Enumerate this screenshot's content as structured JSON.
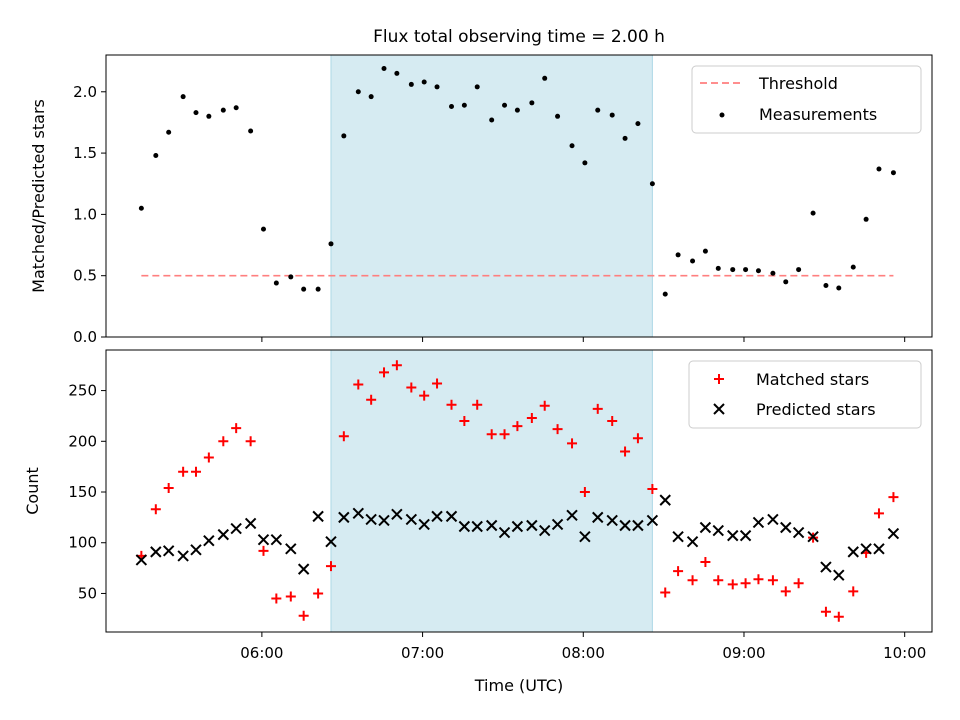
{
  "figure": {
    "title": "Flux total observing time = 2.00 h",
    "highlight_color": "#add8e6",
    "xaxis": {
      "label": "Time (UTC)",
      "tick_labels": [
        "06:00",
        "07:00",
        "08:00",
        "09:00",
        "10:00"
      ],
      "tick_hours": [
        6,
        7,
        8,
        9,
        10
      ],
      "range_hours": [
        5.03,
        10.17
      ]
    }
  },
  "chart_data": [
    {
      "type": "scatter",
      "ylabel": "Matched/Predicted stars",
      "ylim": [
        0,
        2.3
      ],
      "yticks": [
        0.0,
        0.5,
        1.0,
        1.5,
        2.0
      ],
      "ytick_labels": [
        "0.0",
        "0.5",
        "1.0",
        "1.5",
        "2.0"
      ],
      "highlight_span_hours": [
        6.43,
        8.43
      ],
      "legend_position": "top-right",
      "threshold": {
        "name": "Threshold",
        "value": 0.5,
        "x_range_hours": [
          5.25,
          9.93
        ],
        "color": "#ff7f7f",
        "style": "dashed"
      },
      "series": [
        {
          "name": "Measurements",
          "marker": "dot",
          "color": "#000000",
          "x_hours": [
            5.25,
            5.34,
            5.42,
            5.51,
            5.59,
            5.67,
            5.76,
            5.84,
            5.93,
            6.01,
            6.09,
            6.18,
            6.26,
            6.35,
            6.43,
            6.51,
            6.6,
            6.68,
            6.76,
            6.84,
            6.93,
            7.01,
            7.09,
            7.18,
            7.26,
            7.34,
            7.43,
            7.51,
            7.59,
            7.68,
            7.76,
            7.84,
            7.93,
            8.01,
            8.09,
            8.18,
            8.26,
            8.34,
            8.43,
            8.51,
            8.59,
            8.68,
            8.76,
            8.84,
            8.93,
            9.01,
            9.09,
            9.18,
            9.26,
            9.34,
            9.43,
            9.51,
            9.59,
            9.68,
            9.76,
            9.84,
            9.93
          ],
          "values": [
            1.05,
            1.48,
            1.67,
            1.96,
            1.83,
            1.8,
            1.85,
            1.87,
            1.68,
            0.88,
            0.44,
            0.49,
            0.39,
            0.39,
            0.76,
            1.64,
            2.0,
            1.96,
            2.19,
            2.15,
            2.06,
            2.08,
            2.04,
            1.88,
            1.89,
            2.04,
            1.77,
            1.89,
            1.85,
            1.91,
            2.11,
            1.8,
            1.56,
            1.42,
            1.85,
            1.81,
            1.62,
            1.74,
            1.25,
            0.35,
            0.67,
            0.62,
            0.7,
            0.56,
            0.55,
            0.55,
            0.54,
            0.52,
            0.45,
            0.55,
            1.01,
            0.42,
            0.4,
            0.57,
            0.96,
            1.37,
            1.34
          ]
        }
      ]
    },
    {
      "type": "scatter",
      "ylabel": "Count",
      "ylim": [
        12,
        290
      ],
      "yticks": [
        50,
        100,
        150,
        200,
        250
      ],
      "ytick_labels": [
        "50",
        "100",
        "150",
        "200",
        "250"
      ],
      "highlight_span_hours": [
        6.43,
        8.43
      ],
      "legend_position": "top-right",
      "series": [
        {
          "name": "Matched stars",
          "marker": "plus",
          "color": "#ff0000",
          "x_hours": [
            5.25,
            5.34,
            5.42,
            5.51,
            5.59,
            5.67,
            5.76,
            5.84,
            5.93,
            6.01,
            6.09,
            6.18,
            6.26,
            6.35,
            6.43,
            6.51,
            6.6,
            6.68,
            6.76,
            6.84,
            6.93,
            7.01,
            7.09,
            7.18,
            7.26,
            7.34,
            7.43,
            7.51,
            7.59,
            7.68,
            7.76,
            7.84,
            7.93,
            8.01,
            8.09,
            8.18,
            8.26,
            8.34,
            8.43,
            8.51,
            8.59,
            8.68,
            8.76,
            8.84,
            8.93,
            9.01,
            9.09,
            9.18,
            9.26,
            9.34,
            9.43,
            9.51,
            9.59,
            9.68,
            9.76,
            9.84,
            9.93
          ],
          "values": [
            87,
            133,
            154,
            170,
            170,
            184,
            200,
            213,
            200,
            92,
            45,
            47,
            28,
            50,
            77,
            205,
            256,
            241,
            268,
            275,
            253,
            245,
            257,
            236,
            220,
            236,
            207,
            207,
            215,
            223,
            235,
            212,
            198,
            150,
            232,
            220,
            190,
            203,
            153,
            51,
            72,
            63,
            81,
            63,
            59,
            60,
            64,
            63,
            52,
            60,
            105,
            32,
            27,
            52,
            90,
            129,
            145
          ]
        },
        {
          "name": "Predicted stars",
          "marker": "x",
          "color": "#000000",
          "x_hours": [
            5.25,
            5.34,
            5.42,
            5.51,
            5.59,
            5.67,
            5.76,
            5.84,
            5.93,
            6.01,
            6.09,
            6.18,
            6.26,
            6.35,
            6.43,
            6.51,
            6.6,
            6.68,
            6.76,
            6.84,
            6.93,
            7.01,
            7.09,
            7.18,
            7.26,
            7.34,
            7.43,
            7.51,
            7.59,
            7.68,
            7.76,
            7.84,
            7.93,
            8.01,
            8.09,
            8.18,
            8.26,
            8.34,
            8.43,
            8.51,
            8.59,
            8.68,
            8.76,
            8.84,
            8.93,
            9.01,
            9.09,
            9.18,
            9.26,
            9.34,
            9.43,
            9.51,
            9.59,
            9.68,
            9.76,
            9.84,
            9.93
          ],
          "values": [
            83,
            91,
            92,
            87,
            93,
            102,
            108,
            114,
            119,
            103,
            103,
            94,
            74,
            126,
            101,
            125,
            129,
            123,
            122,
            128,
            123,
            118,
            126,
            126,
            116,
            116,
            117,
            110,
            116,
            117,
            112,
            118,
            127,
            106,
            125,
            122,
            117,
            117,
            122,
            142,
            106,
            101,
            115,
            112,
            107,
            107,
            120,
            123,
            115,
            110,
            106,
            76,
            68,
            91,
            94,
            94,
            109
          ]
        }
      ]
    }
  ]
}
